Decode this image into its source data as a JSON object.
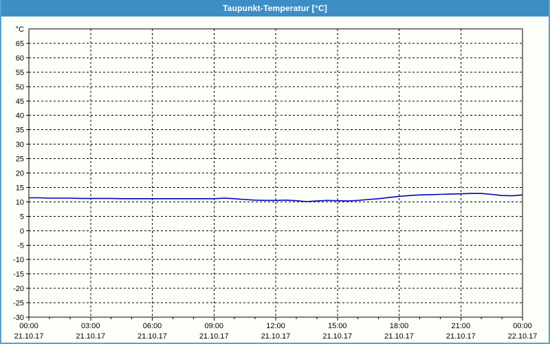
{
  "window": {
    "title": "Taupunkt-Temperatur [°C]"
  },
  "colors": {
    "titlebar_bg": "#3E8EC6",
    "titlebar_text": "#FFFFFF",
    "window_border": "#55A3D4",
    "window_bg": "#FCFEF8",
    "plot_border": "#000000",
    "gridline": "#000000",
    "tick_label": "#000000",
    "series_line": "#0000C0"
  },
  "chart_data": {
    "type": "line",
    "title": "Taupunkt-Temperatur [°C]",
    "xlabel": "",
    "ylabel": "°C",
    "grid": "dashed",
    "legend": "none",
    "y_axis": {
      "unit_label": "°C",
      "plot_min": -30,
      "plot_max": 70,
      "tick_step": 5,
      "labeled_ticks": [
        65,
        60,
        55,
        50,
        45,
        40,
        35,
        30,
        25,
        20,
        15,
        10,
        5,
        0,
        -5,
        -10,
        -15,
        -20,
        -25,
        -30
      ]
    },
    "x_axis": {
      "range_hours": [
        0,
        24
      ],
      "minor_tick_every_hours": 1,
      "major_tick_every_hours": 3,
      "major_ticks": [
        {
          "hour": 0,
          "time": "00:00",
          "date": "21.10.17"
        },
        {
          "hour": 3,
          "time": "03:00",
          "date": "21.10.17"
        },
        {
          "hour": 6,
          "time": "06:00",
          "date": "21.10.17"
        },
        {
          "hour": 9,
          "time": "09:00",
          "date": "21.10.17"
        },
        {
          "hour": 12,
          "time": "12:00",
          "date": "21.10.17"
        },
        {
          "hour": 15,
          "time": "15:00",
          "date": "21.10.17"
        },
        {
          "hour": 18,
          "time": "18:00",
          "date": "21.10.17"
        },
        {
          "hour": 21,
          "time": "21:00",
          "date": "21.10.17"
        },
        {
          "hour": 24,
          "time": "00:00",
          "date": "22.10.17"
        }
      ]
    },
    "series": [
      {
        "name": "Taupunkt-Temperatur",
        "unit": "°C",
        "color": "#0000C0",
        "hours": [
          0,
          0.5,
          1,
          1.5,
          2,
          2.5,
          3,
          3.5,
          4,
          4.5,
          5,
          5.5,
          6,
          6.5,
          7,
          7.5,
          8,
          8.5,
          9,
          9.5,
          10,
          10.5,
          11,
          11.5,
          12,
          12.5,
          13,
          13.5,
          14,
          14.5,
          15,
          15.5,
          16,
          16.5,
          17,
          17.5,
          18,
          18.5,
          19,
          19.5,
          20,
          20.5,
          21,
          21.5,
          22,
          22.5,
          23,
          23.5,
          24
        ],
        "values": [
          11.4,
          11.4,
          11.3,
          11.3,
          11.3,
          11.2,
          11.2,
          11.2,
          11.2,
          11.1,
          11.1,
          11.1,
          11.1,
          11.1,
          11.1,
          11.1,
          11.1,
          11.1,
          11.1,
          11.3,
          11.1,
          10.8,
          10.6,
          10.5,
          10.5,
          10.6,
          10.4,
          10.1,
          10.3,
          10.5,
          10.4,
          10.3,
          10.5,
          10.8,
          11.1,
          11.5,
          11.9,
          12.2,
          12.4,
          12.5,
          12.6,
          12.7,
          12.8,
          12.9,
          12.9,
          12.6,
          12.2,
          12.1,
          12.4
        ]
      }
    ]
  }
}
